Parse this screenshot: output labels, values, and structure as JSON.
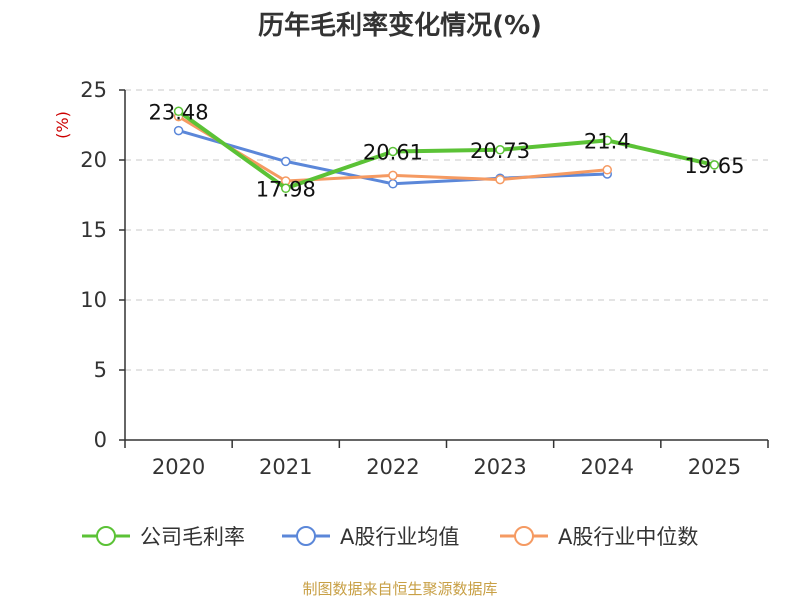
{
  "chart_data": {
    "type": "line",
    "title": "历年毛利率变化情况(%)",
    "ylabel": "(%)",
    "xlabel": "",
    "categories": [
      "2020",
      "2021",
      "2022",
      "2023",
      "2024",
      "2025"
    ],
    "ylim": [
      0,
      25
    ],
    "yticks": [
      0,
      5,
      10,
      15,
      20,
      25
    ],
    "grid": true,
    "legend_position": "bottom",
    "series": [
      {
        "name": "公司毛利率",
        "color": "#5bc236",
        "values": [
          23.48,
          17.98,
          20.61,
          20.73,
          21.4,
          19.65
        ],
        "labels": [
          "23.48",
          "17.98",
          "20.61",
          "20.73",
          "21.4",
          "19.65"
        ]
      },
      {
        "name": "A股行业均值",
        "color": "#5b87d9",
        "values": [
          22.1,
          19.9,
          18.3,
          18.7,
          19.0,
          null
        ]
      },
      {
        "name": "A股行业中位数",
        "color": "#f59a62",
        "values": [
          23.1,
          18.5,
          18.9,
          18.6,
          19.3,
          null
        ]
      }
    ],
    "source": "制图数据来自恒生聚源数据库"
  }
}
